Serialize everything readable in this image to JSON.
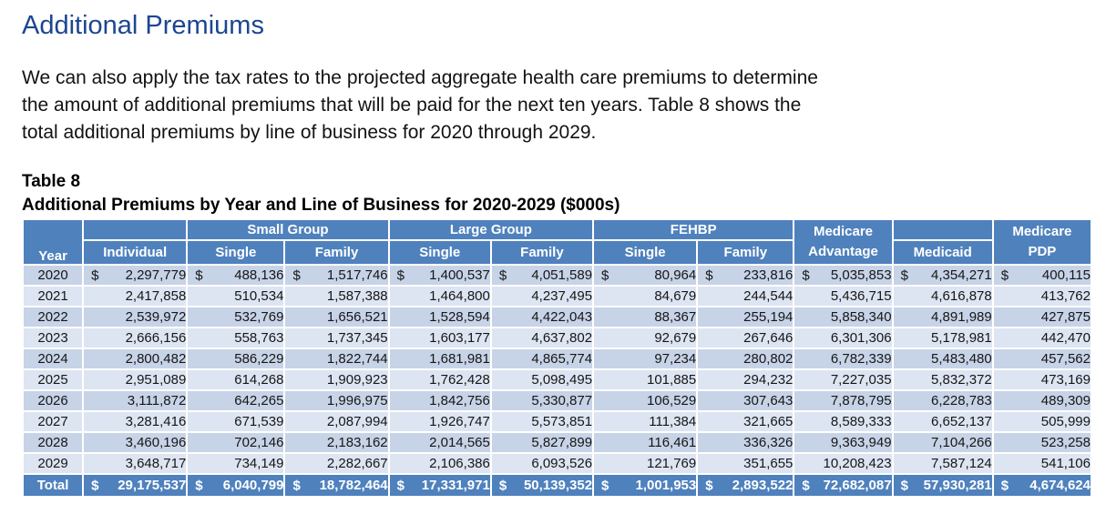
{
  "doc": {
    "heading": "Additional Premiums",
    "paragraph_lines": [
      "We can also apply the tax rates to the projected aggregate health care premiums to determine",
      "the amount of additional premiums that will be paid for the next ten years. Table 8 shows the",
      "total additional premiums by line of business for 2020 through 2029."
    ],
    "table_label": "Table 8",
    "table_title": "Additional Premiums by Year and Line of Business for 2020-2029 ($000s)"
  },
  "colors": {
    "heading_blue": "#1b4692",
    "header_fill": "#4f81bd",
    "band_dark": "#c7d3e7",
    "band_light": "#dde5f2",
    "header_text": "#ffffff"
  },
  "table": {
    "header": {
      "year": "Year",
      "individual": "Individual",
      "small_group": "Small Group",
      "large_group": "Large Group",
      "fehbp": "FEHBP",
      "single": "Single",
      "family": "Family",
      "medicare_advantage_line1": "Medicare",
      "medicare_advantage_line2": "Advantage",
      "medicaid": "Medicaid",
      "medicare_pdp_line1": "Medicare",
      "medicare_pdp_line2": "PDP"
    },
    "currency_symbol": "$",
    "rows": [
      {
        "year": "2020",
        "dollar": true,
        "values": [
          "2,297,779",
          "488,136",
          "1,517,746",
          "1,400,537",
          "4,051,589",
          "80,964",
          "233,816",
          "5,035,853",
          "4,354,271",
          "400,115"
        ]
      },
      {
        "year": "2021",
        "dollar": false,
        "values": [
          "2,417,858",
          "510,534",
          "1,587,388",
          "1,464,800",
          "4,237,495",
          "84,679",
          "244,544",
          "5,436,715",
          "4,616,878",
          "413,762"
        ]
      },
      {
        "year": "2022",
        "dollar": false,
        "values": [
          "2,539,972",
          "532,769",
          "1,656,521",
          "1,528,594",
          "4,422,043",
          "88,367",
          "255,194",
          "5,858,340",
          "4,891,989",
          "427,875"
        ]
      },
      {
        "year": "2023",
        "dollar": false,
        "values": [
          "2,666,156",
          "558,763",
          "1,737,345",
          "1,603,177",
          "4,637,802",
          "92,679",
          "267,646",
          "6,301,306",
          "5,178,981",
          "442,470"
        ]
      },
      {
        "year": "2024",
        "dollar": false,
        "values": [
          "2,800,482",
          "586,229",
          "1,822,744",
          "1,681,981",
          "4,865,774",
          "97,234",
          "280,802",
          "6,782,339",
          "5,483,480",
          "457,562"
        ]
      },
      {
        "year": "2025",
        "dollar": false,
        "values": [
          "2,951,089",
          "614,268",
          "1,909,923",
          "1,762,428",
          "5,098,495",
          "101,885",
          "294,232",
          "7,227,035",
          "5,832,372",
          "473,169"
        ]
      },
      {
        "year": "2026",
        "dollar": false,
        "values": [
          "3,111,872",
          "642,265",
          "1,996,975",
          "1,842,756",
          "5,330,877",
          "106,529",
          "307,643",
          "7,878,795",
          "6,228,783",
          "489,309"
        ]
      },
      {
        "year": "2027",
        "dollar": false,
        "values": [
          "3,281,416",
          "671,539",
          "2,087,994",
          "1,926,747",
          "5,573,851",
          "111,384",
          "321,665",
          "8,589,333",
          "6,652,137",
          "505,999"
        ]
      },
      {
        "year": "2028",
        "dollar": false,
        "values": [
          "3,460,196",
          "702,146",
          "2,183,162",
          "2,014,565",
          "5,827,899",
          "116,461",
          "336,326",
          "9,363,949",
          "7,104,266",
          "523,258"
        ]
      },
      {
        "year": "2029",
        "dollar": false,
        "values": [
          "3,648,717",
          "734,149",
          "2,282,667",
          "2,106,386",
          "6,093,526",
          "121,769",
          "351,655",
          "10,208,423",
          "7,587,124",
          "541,106"
        ]
      }
    ],
    "total": {
      "label": "Total",
      "dollar": true,
      "values": [
        "29,175,537",
        "6,040,799",
        "18,782,464",
        "17,331,971",
        "50,139,352",
        "1,001,953",
        "2,893,522",
        "72,682,087",
        "57,930,281",
        "4,674,624"
      ]
    }
  }
}
